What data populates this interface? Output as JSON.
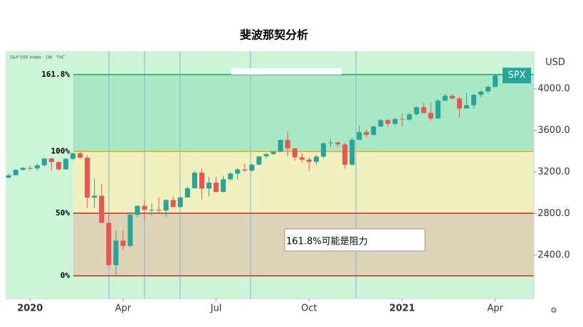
{
  "chart_data": {
    "type": "candlestick",
    "title": "斐波那契分析",
    "subtitle": "S&P 500 Index · 1W · TVC",
    "symbol": "SPX",
    "currency": "USD",
    "annotation": "161.8%可能是阻力",
    "up_color": "#26a69a",
    "down_color": "#ef5350",
    "xlim": [
      -3.4,
      70.4
    ],
    "xticks": [
      {
        "value": 0,
        "label": "2020"
      },
      {
        "value": 13,
        "label": "Apr"
      },
      {
        "value": 26,
        "label": "Jul"
      },
      {
        "value": 39,
        "label": "Oct"
      },
      {
        "value": 52,
        "label": "2021"
      },
      {
        "value": 65,
        "label": "Apr"
      }
    ],
    "ylim": [
      1983,
      4362
    ],
    "yticks": [
      {
        "value": 2400,
        "label": "2400.0"
      },
      {
        "value": 2800,
        "label": "2800.0"
      },
      {
        "value": 3200,
        "label": "3200.0"
      },
      {
        "value": 3600,
        "label": "3600.0"
      },
      {
        "value": 4000,
        "label": "4000.0"
      }
    ],
    "fib_levels": [
      {
        "label": "161.8%",
        "price": 4137,
        "color": "#4caf78"
      },
      {
        "label": "100%",
        "price": 3398,
        "color": "#e0b83c"
      },
      {
        "label": "50%",
        "price": 2803,
        "color": "#d9534f"
      },
      {
        "label": "0%",
        "price": 2202,
        "color": "#d9534f"
      }
    ],
    "x": [
      -3,
      -2,
      -1,
      0,
      1,
      2,
      3,
      4,
      5,
      6,
      7,
      8,
      9,
      10,
      11,
      12,
      13,
      14,
      15,
      16,
      17,
      18,
      19,
      20,
      21,
      22,
      23,
      24,
      25,
      26,
      27,
      28,
      29,
      30,
      31,
      32,
      33,
      34,
      35,
      36,
      37,
      38,
      39,
      40,
      41,
      42,
      43,
      44,
      45,
      46,
      47,
      48,
      49,
      50,
      51,
      52,
      53,
      54,
      55,
      56,
      57,
      58,
      59,
      60,
      61,
      62,
      63,
      64,
      65
    ],
    "open": [
      3145,
      3169,
      3221,
      3240,
      3235,
      3265,
      3330,
      3295,
      3225,
      3327,
      3380,
      3338,
      2954,
      2972,
      2711,
      2305,
      2541,
      2489,
      2789,
      2875,
      2837,
      2837,
      2830,
      2930,
      2864,
      2955,
      3044,
      3194,
      3041,
      3098,
      3009,
      3130,
      3185,
      3225,
      3215,
      3271,
      3351,
      3373,
      3397,
      3508,
      3427,
      3341,
      3319,
      3298,
      3348,
      3477,
      3484,
      3465,
      3270,
      3510,
      3585,
      3557,
      3638,
      3699,
      3663,
      3709,
      3703,
      3756,
      3824,
      3768,
      3714,
      3887,
      3934,
      3907,
      3811,
      3842,
      3943,
      3974,
      4019
    ],
    "high": [
      3183,
      3231,
      3247,
      3258,
      3282,
      3337,
      3338,
      3306,
      3337,
      3385,
      3393,
      3360,
      3137,
      3083,
      2790,
      2642,
      2641,
      2819,
      2879,
      2932,
      2898,
      2954,
      2939,
      2968,
      2968,
      3062,
      3211,
      3233,
      3155,
      3154,
      3165,
      3200,
      3238,
      3280,
      3279,
      3352,
      3381,
      3400,
      3515,
      3588,
      3430,
      3383,
      3345,
      3362,
      3487,
      3515,
      3494,
      3480,
      3530,
      3646,
      3605,
      3646,
      3712,
      3712,
      3726,
      3760,
      3770,
      3830,
      3870,
      3870,
      3900,
      3951,
      3950,
      3925,
      3960,
      3949,
      3982,
      4030,
      4138
    ],
    "low": [
      3140,
      3165,
      3213,
      3214,
      3214,
      3253,
      3214,
      3212,
      3223,
      3315,
      3328,
      2855,
      2855,
      2708,
      2280,
      2192,
      2447,
      2477,
      2764,
      2727,
      2780,
      2797,
      2766,
      2855,
      2854,
      2960,
      3043,
      2936,
      2965,
      2999,
      3001,
      3115,
      3127,
      3200,
      3201,
      3263,
      3328,
      3361,
      3392,
      3349,
      3310,
      3293,
      3210,
      3268,
      3333,
      3440,
      3440,
      3233,
      3260,
      3507,
      3536,
      3550,
      3633,
      3633,
      3647,
      3636,
      3695,
      3740,
      3760,
      3694,
      3714,
      3880,
      3900,
      3723,
      3809,
      3811,
      3917,
      3955,
      4010
    ],
    "close": [
      3169,
      3221,
      3240,
      3235,
      3265,
      3330,
      3295,
      3225,
      3327,
      3380,
      3338,
      2954,
      2972,
      2711,
      2305,
      2541,
      2489,
      2789,
      2875,
      2837,
      2837,
      2830,
      2930,
      2864,
      2955,
      3044,
      3194,
      3041,
      3098,
      3009,
      3130,
      3185,
      3225,
      3215,
      3271,
      3351,
      3373,
      3397,
      3508,
      3427,
      3341,
      3319,
      3298,
      3348,
      3477,
      3484,
      3465,
      3270,
      3510,
      3585,
      3557,
      3638,
      3699,
      3663,
      3709,
      3703,
      3756,
      3824,
      3768,
      3714,
      3887,
      3934,
      3907,
      3811,
      3842,
      3943,
      3974,
      4019,
      4128
    ]
  }
}
